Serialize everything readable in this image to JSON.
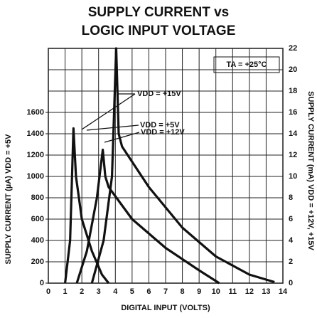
{
  "chart_data": {
    "type": "line",
    "title": [
      "SUPPLY CURRENT vs",
      "LOGIC INPUT VOLTAGE"
    ],
    "x_label": "DIGITAL INPUT (VOLTS)",
    "y_label": "SUPPLY CURRENT (µA) VDD = +5V",
    "y2_label": "SUPPLY CURRENT (mA) VDD = +12V, +15V",
    "annotations": [
      "TA = +25°C",
      "VDD = +15V",
      "VDD = +5V",
      "VDD = +12V"
    ],
    "xlim": [
      0,
      14
    ],
    "xticks": [
      0,
      1,
      2,
      3,
      4,
      5,
      6,
      7,
      8,
      9,
      10,
      11,
      12,
      13,
      14
    ],
    "ylim": [
      0,
      2200
    ],
    "yticks": [
      0,
      200,
      400,
      600,
      800,
      1000,
      1200,
      1400,
      1600
    ],
    "y2lim": [
      0,
      22
    ],
    "y2ticks": [
      0,
      2,
      4,
      6,
      8,
      10,
      12,
      14,
      16,
      18,
      20,
      22
    ],
    "grid": true,
    "series": [
      {
        "color": "#111111",
        "axis": "y",
        "x": [
          1.0,
          1.3,
          1.5,
          1.65,
          2.0,
          2.6,
          3.2,
          3.6
        ],
        "values": [
          0,
          400,
          1450,
          1000,
          600,
          300,
          80,
          0
        ]
      },
      {
        "color": "#111111",
        "axis": "y2",
        "x": [
          1.7,
          2.3,
          2.9,
          3.25,
          3.4,
          3.6,
          5,
          7,
          9,
          10.2
        ],
        "values": [
          0,
          3,
          8,
          12.5,
          10,
          9,
          6,
          3.3,
          1.2,
          0
        ]
      },
      {
        "color": "#111111",
        "axis": "y2",
        "x": [
          2.6,
          3.3,
          3.8,
          4.05,
          4.2,
          4.4,
          6,
          8,
          10,
          12,
          13.5
        ],
        "values": [
          0,
          4,
          10,
          22,
          14,
          12.8,
          9,
          5.2,
          2.5,
          0.8,
          0.1
        ]
      }
    ]
  }
}
